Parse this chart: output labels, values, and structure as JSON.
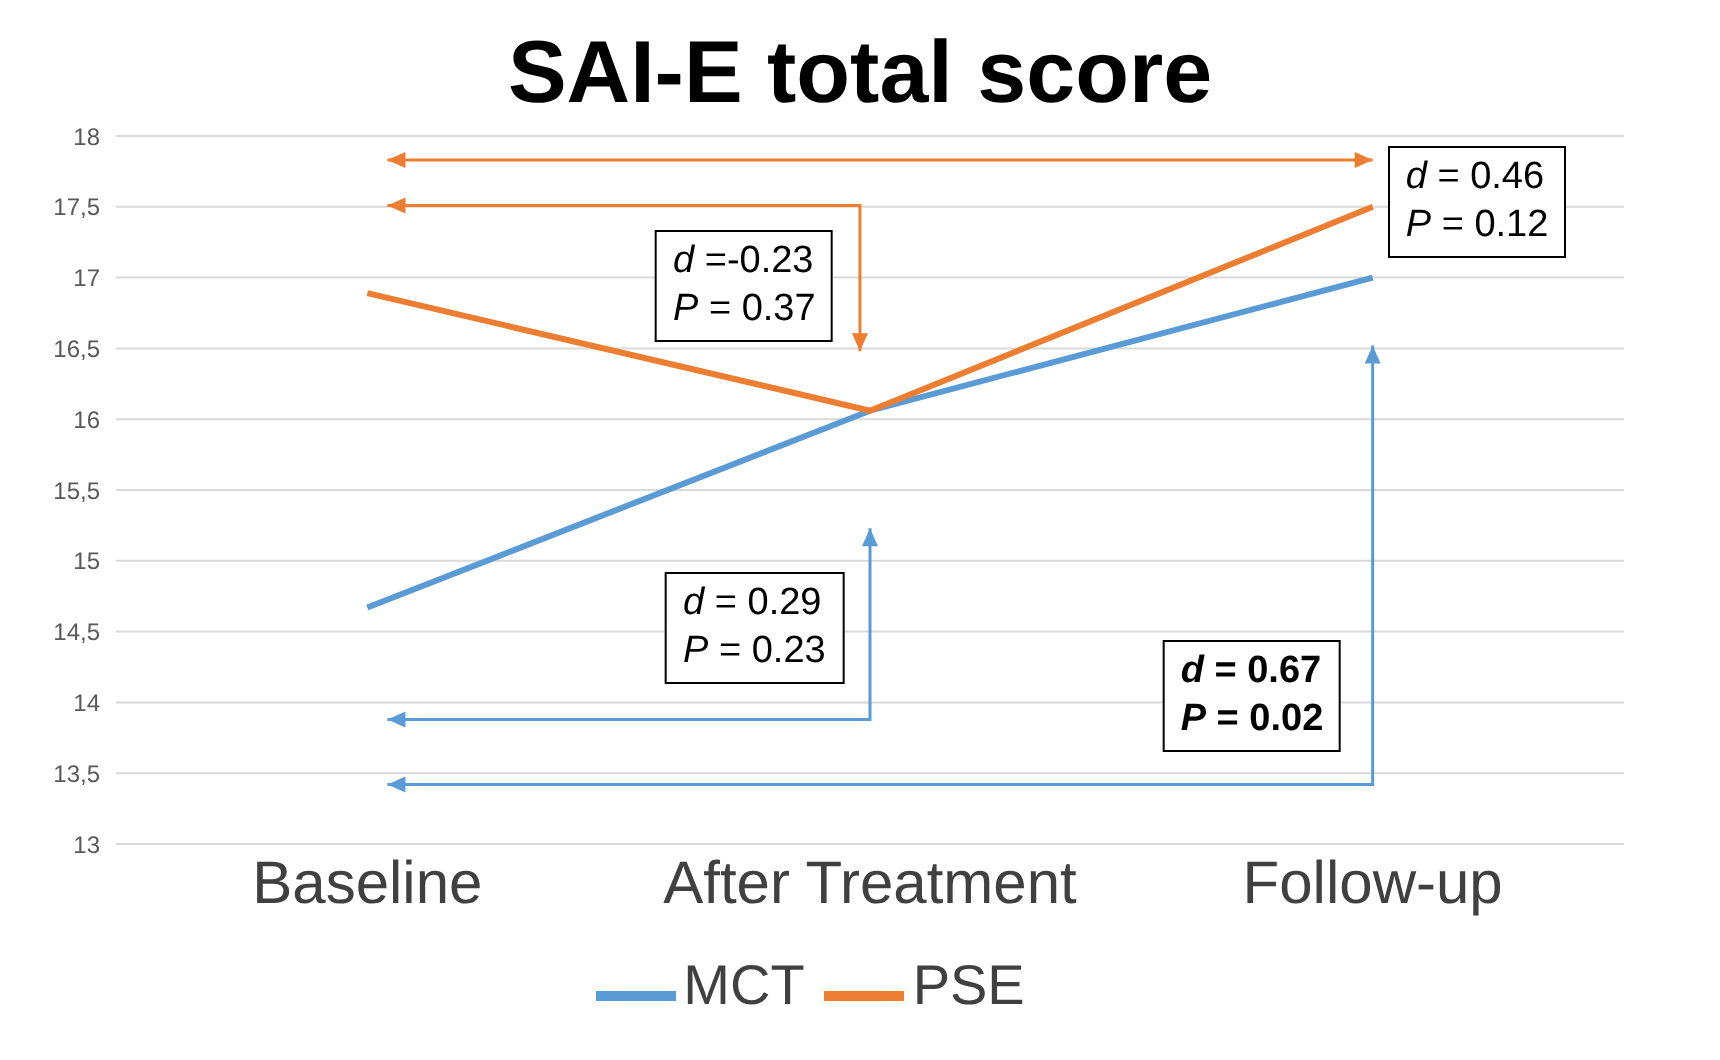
{
  "chart_data": {
    "type": "line",
    "title": "SAI-E total score",
    "categories": [
      "Baseline",
      "After Treatment",
      "Follow-up"
    ],
    "series": [
      {
        "name": "MCT",
        "color": "#5b9bd5",
        "values": [
          14.67,
          16.06,
          17.0
        ]
      },
      {
        "name": "PSE",
        "color": "#ed7d31",
        "values": [
          16.89,
          16.06,
          17.5
        ]
      }
    ],
    "ylim": [
      13,
      18
    ],
    "yticks": [
      13,
      {
        "value": 13.5,
        "label": "13,5"
      },
      14,
      {
        "value": 14.5,
        "label": "14,5"
      },
      15,
      {
        "value": 15.5,
        "label": "15,5"
      },
      16,
      {
        "value": 16.5,
        "label": "16,5"
      },
      17,
      {
        "value": 17.5,
        "label": "17,5"
      },
      18
    ],
    "grid": "y",
    "legend": "bottom",
    "marker": "none",
    "line_style": "solid",
    "annotations": [
      "d =-0.23\nP = 0.37",
      "d = 0.46\nP = 0.12",
      "d = 0.29\nP = 0.23",
      "d = 0.67\nP = 0.02"
    ]
  }
}
